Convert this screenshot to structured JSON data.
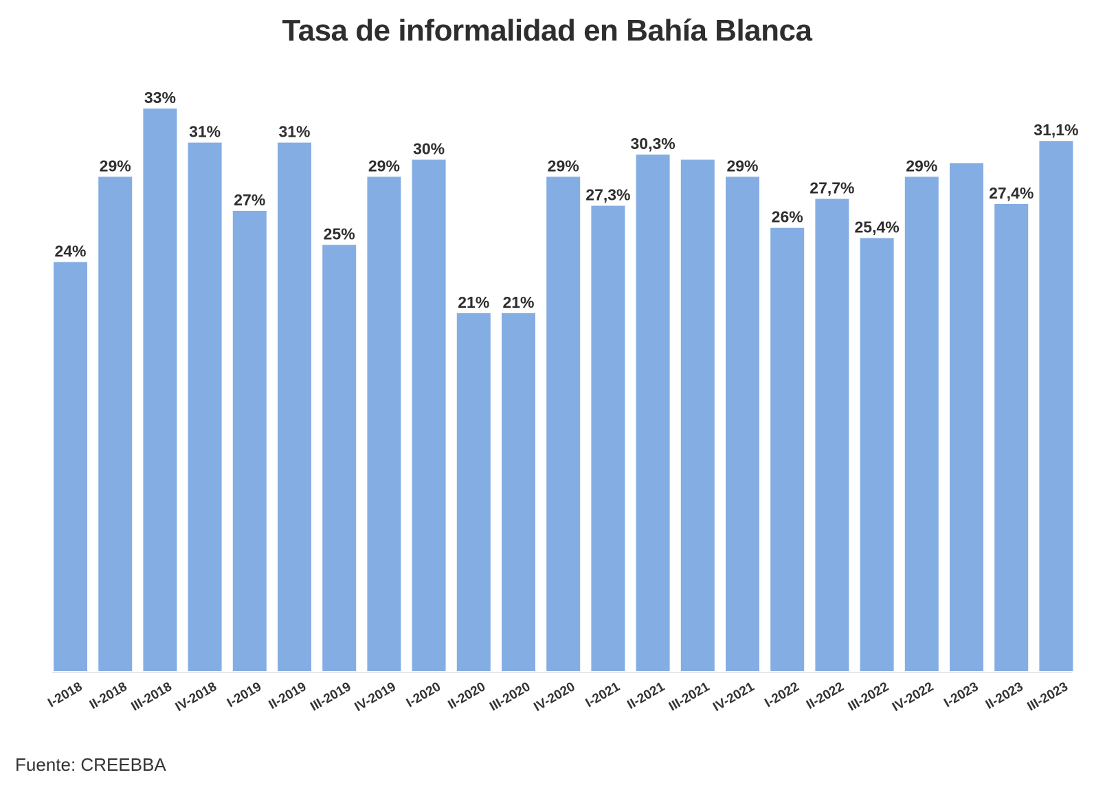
{
  "chart_data": {
    "type": "bar",
    "title": "Tasa de informalidad en Bahía Blanca",
    "xlabel": "",
    "ylabel": "",
    "ylim": [
      0,
      33
    ],
    "grid": false,
    "bar_color": "#84ade3",
    "categories": [
      "I-2018",
      "II-2018",
      "III-2018",
      "IV-2018",
      "I-2019",
      "II-2019",
      "III-2019",
      "IV-2019",
      "I-2020",
      "II-2020",
      "III-2020",
      "IV-2020",
      "I-2021",
      "II-2021",
      "III-2021",
      "IV-2021",
      "I-2022",
      "II-2022",
      "III-2022",
      "IV-2022",
      "I-2023",
      "II-2023",
      "III-2023"
    ],
    "values": [
      24,
      29,
      33,
      31,
      27,
      31,
      25,
      29,
      30,
      21,
      21,
      29,
      27.3,
      30.3,
      30,
      29,
      26,
      27.7,
      25.4,
      29,
      29.8,
      27.4,
      31.1
    ],
    "value_labels": [
      "24%",
      "29%",
      "33%",
      "31%",
      "27%",
      "31%",
      "25%",
      "29%",
      "30%",
      "21%",
      "21%",
      "29%",
      "27,3%",
      "30,3%",
      "",
      "29%",
      "26%",
      "27,7%",
      "25,4%",
      "29%",
      "",
      "27,4%",
      "31,1%"
    ]
  },
  "source": "Fuente: CREEBBA"
}
